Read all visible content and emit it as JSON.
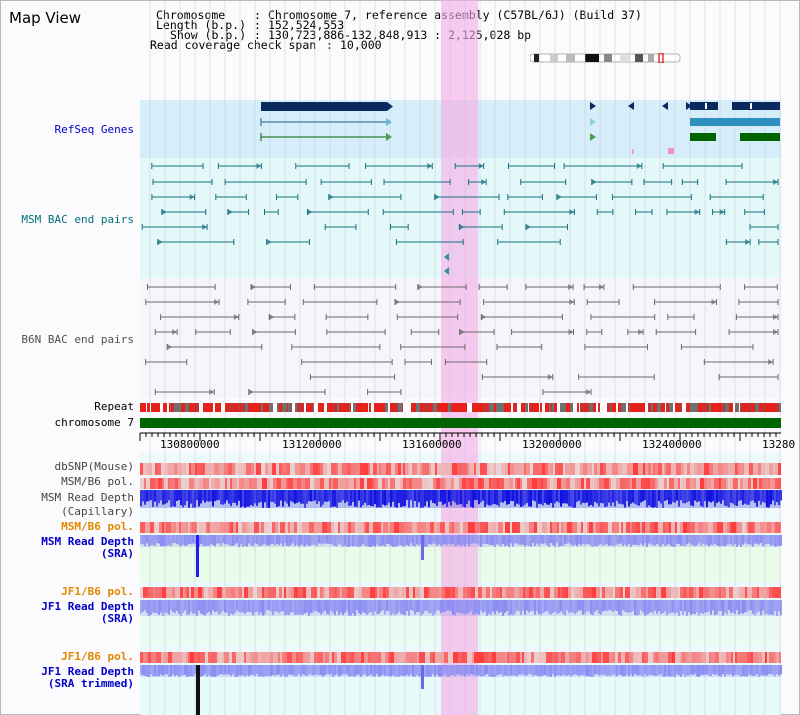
{
  "title": "Map View",
  "info": {
    "chromosome_key": "Chromosome",
    "chromosome_val": "Chromosome 7, reference assembly (C57BL/6J) (Build 37)",
    "length_key": "Length (b.p.)",
    "length_val": "152,524,553",
    "show_key": "Show (b.p.)",
    "show_val": "130,723,886-132,848,913 : 2,125,028 bp",
    "span_key": "Read coverage check span",
    "span_val": "10,000"
  },
  "tracks": {
    "refseq": "RefSeq Genes",
    "msm_bac": "MSM BAC end pairs",
    "b6n_bac": "B6N BAC end pairs",
    "repeat": "Repeat",
    "chromosome": "chromosome 7",
    "dbsnp": "dbSNP(Mouse)",
    "msm_b6_pol_1": "MSM/B6 pol.",
    "msm_read_depth_cap_1": "MSM Read Depth",
    "msm_read_depth_cap_2": "(Capillary)",
    "msm_b6_pol_2": "MSM/B6 pol.",
    "msm_read_depth_sra_1": "MSM Read Depth",
    "msm_read_depth_sra_2": "(SRA)",
    "jf1_b6_pol_1": "JF1/B6 pol.",
    "jf1_read_depth_sra_1": "JF1 Read Depth",
    "jf1_read_depth_sra_2": "(SRA)",
    "jf1_b6_pol_2": "JF1/B6 pol.",
    "jf1_read_depth_trim_1": "JF1 Read Depth",
    "jf1_read_depth_trim_2": "(SRA trimmed)"
  },
  "axis_ticks": [
    "130800000",
    "131200000",
    "131600000",
    "132000000",
    "132400000",
    "13280"
  ],
  "colors": {
    "refseq_bg": "#d6eef9",
    "msm_bg": "#e3f9f9",
    "b6n_bg": "#f6f6fa",
    "gene_dark": "#0a2a5e",
    "gene_teal": "#2f8fbf",
    "gene_green": "#006400",
    "msm_pair": "#1a6f7f",
    "b6n_pair": "#6a6a6a",
    "highlight": "#f5aae6",
    "chromosome_bar": "#006400",
    "read_depth_blue": "#1010e0",
    "read_depth_lavender": "#8a8cf2"
  }
}
